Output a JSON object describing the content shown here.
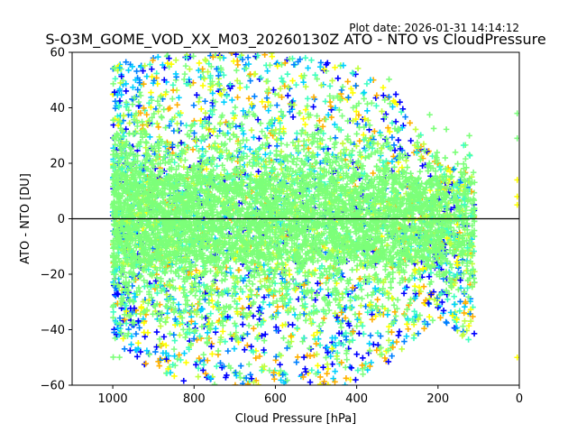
{
  "chart_data": {
    "type": "scatter",
    "title": "S-O3M_GOME_VOD_XX_M03_20260130Z ATO - NTO vs CloudPressure",
    "plot_date": "Plot date: 2026-01-31 14:14:12",
    "xlabel": "Cloud Pressure [hPa]",
    "ylabel": "ATO - NTO [DU]",
    "xlim": [
      1100,
      0
    ],
    "ylim": [
      -60,
      60
    ],
    "xticks": [
      1000,
      800,
      600,
      400,
      200,
      0
    ],
    "yticks": [
      -60,
      -40,
      -20,
      0,
      20,
      40,
      60
    ],
    "reference_line_y": 0,
    "marker": "+",
    "colormap": [
      "#0000ff",
      "#0080ff",
      "#00d0ff",
      "#40ffc0",
      "#80ff80",
      "#c0ff40",
      "#ffff00",
      "#ffb000"
    ],
    "dominant_color": "#7cff79",
    "density": {
      "x_range": [
        110,
        1000
      ],
      "core_band_y": [
        -15,
        15
      ],
      "envelope": [
        {
          "x": 1000,
          "y_low": -45,
          "y_high": 55
        },
        {
          "x": 900,
          "y_low": -55,
          "y_high": 60
        },
        {
          "x": 800,
          "y_low": -60,
          "y_high": 60
        },
        {
          "x": 600,
          "y_low": -60,
          "y_high": 60
        },
        {
          "x": 400,
          "y_low": -60,
          "y_high": 55
        },
        {
          "x": 300,
          "y_low": -50,
          "y_high": 45
        },
        {
          "x": 200,
          "y_low": -35,
          "y_high": 20
        },
        {
          "x": 120,
          "y_low": -45,
          "y_high": 17
        }
      ]
    }
  }
}
